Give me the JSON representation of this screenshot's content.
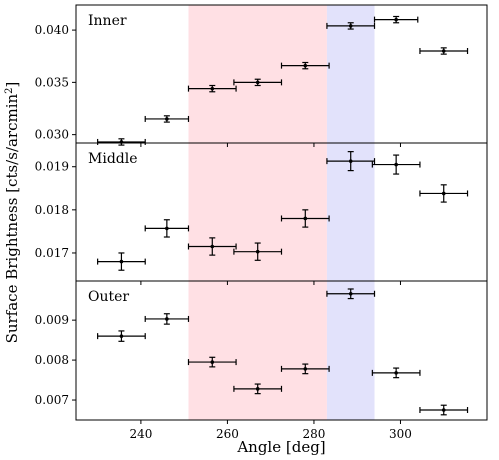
{
  "chart_data": {
    "type": "scatter",
    "xlabel": "Angle [deg]",
    "ylabel": "Surface Brightness [cts/s/arcmin²]",
    "xlim": [
      225,
      320
    ],
    "x_ticks": [
      240,
      260,
      280,
      300
    ],
    "shaded_regions": [
      {
        "x": [
          251,
          283
        ],
        "color": "#ffe0e4"
      },
      {
        "x": [
          283,
          294
        ],
        "color": "#e2e2fb"
      }
    ],
    "grid": false,
    "panels": [
      {
        "title": "Inner",
        "ylim": [
          0.0292,
          0.0424
        ],
        "y_ticks": [
          0.03,
          0.035,
          0.04
        ],
        "y_tick_labels": [
          "0.030",
          "0.035",
          "0.040"
        ],
        "points": [
          {
            "x": 235.5,
            "xerr": 5.5,
            "y": 0.0293,
            "yerr": 0.0003
          },
          {
            "x": 246.0,
            "xerr": 5.0,
            "y": 0.0315,
            "yerr": 0.0003
          },
          {
            "x": 256.5,
            "xerr": 5.5,
            "y": 0.0344,
            "yerr": 0.0003
          },
          {
            "x": 267.0,
            "xerr": 5.5,
            "y": 0.035,
            "yerr": 0.0003
          },
          {
            "x": 278.0,
            "xerr": 5.5,
            "y": 0.0366,
            "yerr": 0.0003
          },
          {
            "x": 288.5,
            "xerr": 5.5,
            "y": 0.0404,
            "yerr": 0.0003
          },
          {
            "x": 299.0,
            "xerr": 5.0,
            "y": 0.041,
            "yerr": 0.0003
          },
          {
            "x": 310.0,
            "xerr": 5.5,
            "y": 0.038,
            "yerr": 0.0003
          }
        ]
      },
      {
        "title": "Middle",
        "ylim": [
          0.01635,
          0.01955
        ],
        "y_ticks": [
          0.017,
          0.018,
          0.019
        ],
        "y_tick_labels": [
          "0.017",
          "0.018",
          "0.019"
        ],
        "points": [
          {
            "x": 235.5,
            "xerr": 5.5,
            "y": 0.0168,
            "yerr": 0.0002
          },
          {
            "x": 246.0,
            "xerr": 5.0,
            "y": 0.01757,
            "yerr": 0.0002
          },
          {
            "x": 256.5,
            "xerr": 5.5,
            "y": 0.01715,
            "yerr": 0.0002
          },
          {
            "x": 267.0,
            "xerr": 5.5,
            "y": 0.01703,
            "yerr": 0.0002
          },
          {
            "x": 278.0,
            "xerr": 5.5,
            "y": 0.0178,
            "yerr": 0.0002
          },
          {
            "x": 288.5,
            "xerr": 5.5,
            "y": 0.01913,
            "yerr": 0.00022
          },
          {
            "x": 299.0,
            "xerr": 5.5,
            "y": 0.01905,
            "yerr": 0.00022
          },
          {
            "x": 310.0,
            "xerr": 5.5,
            "y": 0.01838,
            "yerr": 0.0002
          }
        ]
      },
      {
        "title": "Outer",
        "ylim": [
          0.0065,
          0.00998
        ],
        "y_ticks": [
          0.007,
          0.008,
          0.009
        ],
        "y_tick_labels": [
          "0.007",
          "0.008",
          "0.009"
        ],
        "points": [
          {
            "x": 235.5,
            "xerr": 5.5,
            "y": 0.0086,
            "yerr": 0.00013
          },
          {
            "x": 246.0,
            "xerr": 5.0,
            "y": 0.00903,
            "yerr": 0.00013
          },
          {
            "x": 256.5,
            "xerr": 5.5,
            "y": 0.00795,
            "yerr": 0.00012
          },
          {
            "x": 267.0,
            "xerr": 5.5,
            "y": 0.00728,
            "yerr": 0.00012
          },
          {
            "x": 278.0,
            "xerr": 5.5,
            "y": 0.00778,
            "yerr": 0.00012
          },
          {
            "x": 288.5,
            "xerr": 5.5,
            "y": 0.00966,
            "yerr": 0.00012
          },
          {
            "x": 299.0,
            "xerr": 5.5,
            "y": 0.00768,
            "yerr": 0.00012
          },
          {
            "x": 310.0,
            "xerr": 5.5,
            "y": 0.00675,
            "yerr": 0.00012
          }
        ]
      }
    ]
  }
}
